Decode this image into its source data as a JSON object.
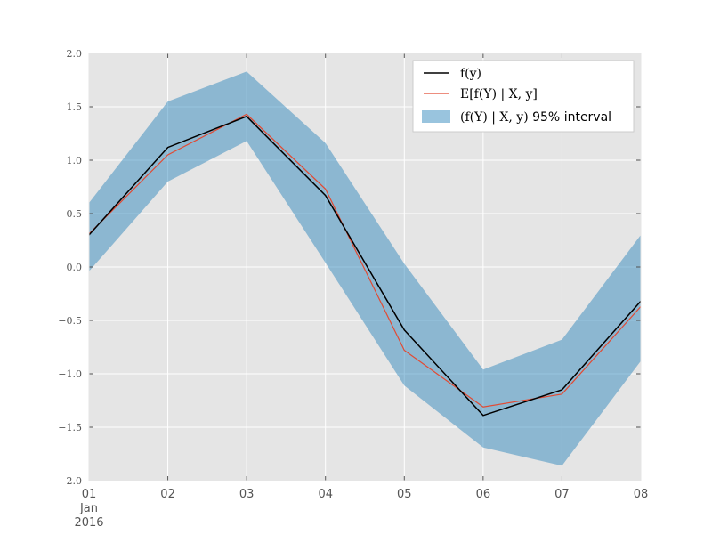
{
  "chart_data": {
    "type": "line",
    "x": [
      "2016-01-01",
      "2016-01-02",
      "2016-01-03",
      "2016-01-04",
      "2016-01-05",
      "2016-01-06",
      "2016-01-07",
      "2016-01-08"
    ],
    "x_tick_labels": [
      "01",
      "02",
      "03",
      "04",
      "05",
      "06",
      "07",
      "08"
    ],
    "x_sub_label_line1": "Jan",
    "x_sub_label_line2": "2016",
    "ylim": [
      -2.0,
      2.0
    ],
    "y_ticks": [
      -2.0,
      -1.5,
      -1.0,
      -0.5,
      0.0,
      0.5,
      1.0,
      1.5,
      2.0
    ],
    "y_tick_labels": [
      "−2.0",
      "−1.5",
      "−1.0",
      "−0.5",
      "0.0",
      "0.5",
      "1.0",
      "1.5",
      "2.0"
    ],
    "grid": true,
    "legend_placement": "top-right",
    "series": [
      {
        "name": "f(y)",
        "legend_math": "f(y)",
        "color": "#000000",
        "values": [
          0.3,
          1.12,
          1.41,
          0.67,
          -0.59,
          -1.39,
          -1.15,
          -0.32
        ]
      },
      {
        "name": "E[f(Y) | X, y]",
        "legend_math": "E[f(Y) | X, y]",
        "color": "#e24a33",
        "values": [
          0.31,
          1.05,
          1.43,
          0.73,
          -0.78,
          -1.31,
          -1.19,
          -0.37
        ]
      }
    ],
    "interval": {
      "name": "(f(Y) | X, y) 95% interval",
      "legend_math": "(f(Y) | X, y)",
      "legend_suffix": " 95% interval",
      "color": "#348abd",
      "lower": [
        -0.04,
        0.8,
        1.18,
        0.04,
        -1.11,
        -1.69,
        -1.86,
        -0.88
      ],
      "upper": [
        0.6,
        1.55,
        1.83,
        1.16,
        0.03,
        -0.96,
        -0.68,
        0.3
      ]
    },
    "colors": {
      "background": "#e5e5e5",
      "grid": "#ffffff"
    }
  }
}
